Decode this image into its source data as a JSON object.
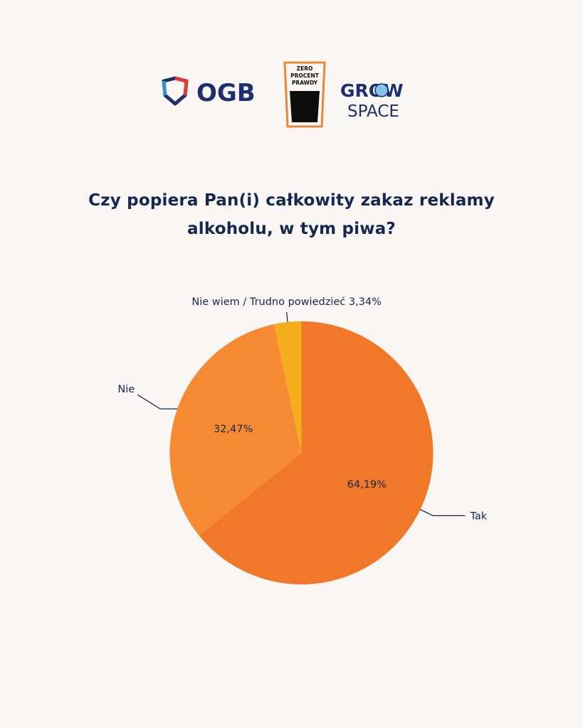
{
  "logos": {
    "ogb": {
      "text": "OGB",
      "color": "#1d2f6f",
      "accent_red": "#e53935",
      "accent_blue": "#3a8fd1"
    },
    "zero_procent_prawdy": {
      "lines": [
        "ZERO",
        "PROCENT",
        "PRAWDY"
      ],
      "border_color": "#e8873a",
      "fill_color": "#0d0d0d"
    },
    "grow_space": {
      "line1": "GROW",
      "line2": "SPACE",
      "color": "#1d2f6f"
    }
  },
  "chart_data": {
    "type": "pie",
    "title": "Czy popiera Pan(i) całkowity zakaz reklamy alkoholu, w tym piwa?",
    "categories": [
      "Tak",
      "Nie",
      "Nie wiem / Trudno powiedzieć"
    ],
    "values": [
      64.19,
      32.47,
      3.34
    ],
    "value_labels": [
      "64,19%",
      "32,47%",
      "3,34%"
    ],
    "colors": [
      "#f07828",
      "#f78b33",
      "#f6ad1d"
    ],
    "start": "12 o'clock",
    "direction": "clockwise",
    "legend": "none",
    "outside_labels": [
      "Tak",
      "Nie",
      "Nie wiem / Trudno powiedzieć 3,34%"
    ],
    "inside_labels": [
      "64,19%",
      "32,47%",
      ""
    ]
  }
}
